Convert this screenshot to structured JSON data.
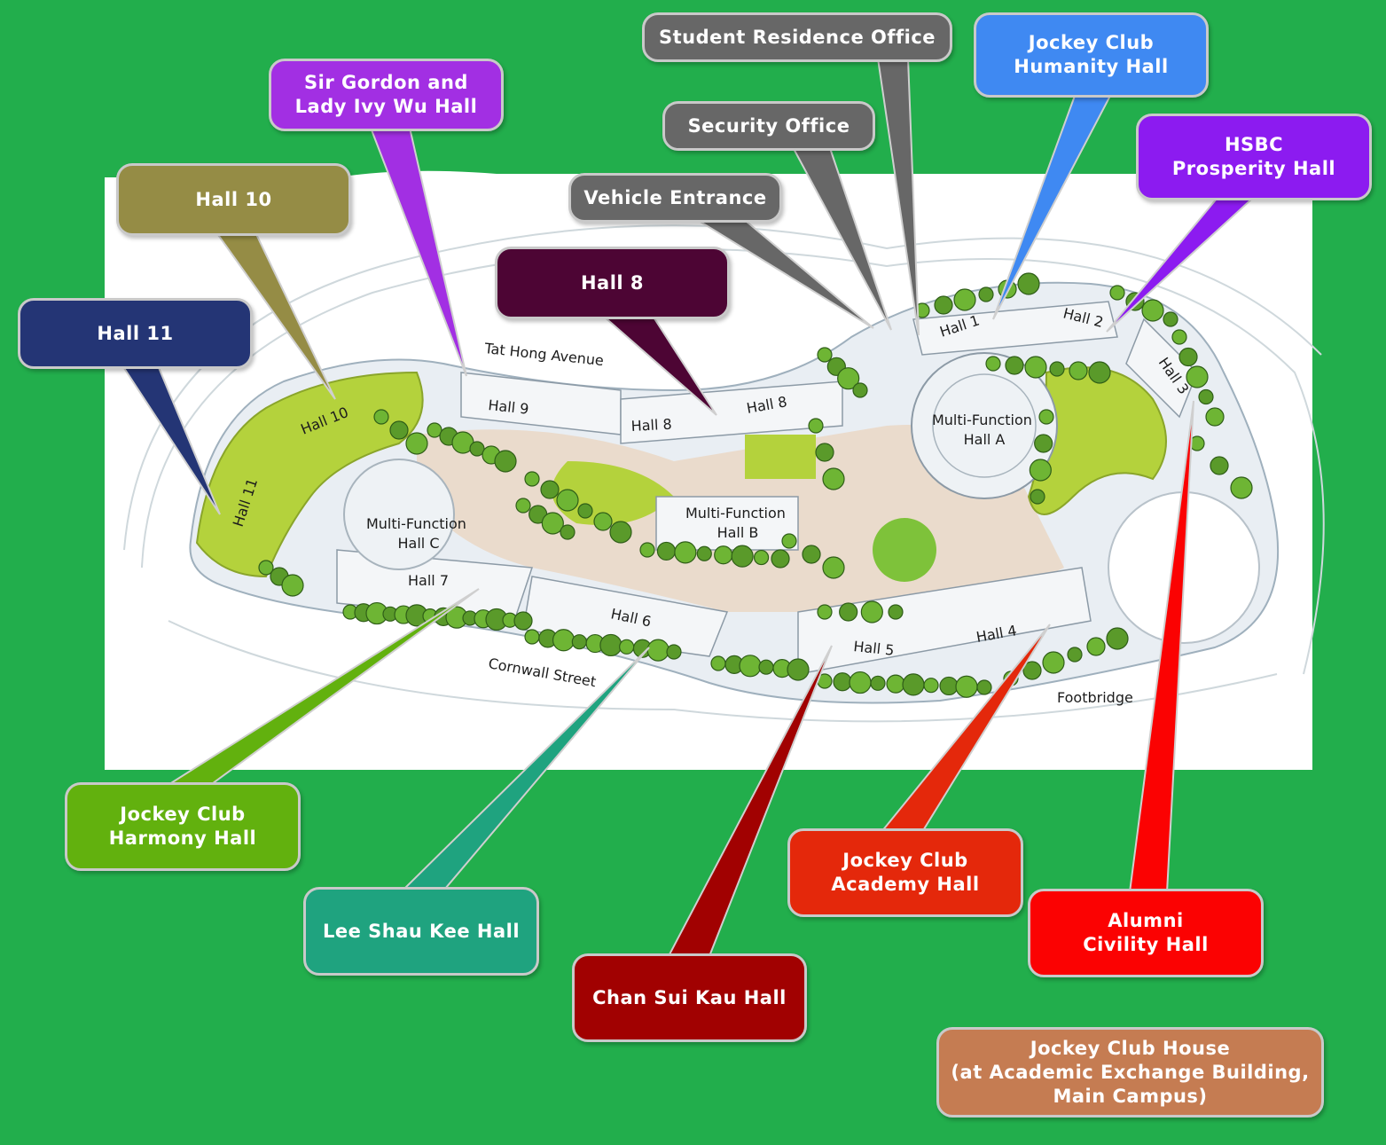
{
  "colors": {
    "background": "#22ae4c",
    "gray": "#676767",
    "olive": "#958c45",
    "navy": "#243575",
    "purple": "#a22fe3",
    "maroon": "#4d0534",
    "blue": "#3f89f2",
    "violet": "#8c1bf0",
    "lime": "#62b10e",
    "teal": "#1fa37f",
    "darkred": "#a10101",
    "orangered": "#e4280b",
    "red": "#fb0202",
    "tan": "#c57c52"
  },
  "callouts": {
    "student_residence_office": [
      "Student Residence Office"
    ],
    "security_office": [
      "Security Office"
    ],
    "vehicle_entrance": [
      "Vehicle Entrance"
    ],
    "humanity_hall": [
      "Jockey Club",
      "Humanity Hall"
    ],
    "prosperity_hall": [
      "HSBC",
      "Prosperity Hall"
    ],
    "wu_hall": [
      "Sir Gordon and",
      "Lady Ivy Wu Hall"
    ],
    "hall_10": [
      "Hall 10"
    ],
    "hall_11": [
      "Hall 11"
    ],
    "hall_8": [
      "Hall 8"
    ],
    "harmony_hall": [
      "Jockey Club",
      "Harmony Hall"
    ],
    "lee_shau_kee_hall": [
      "Lee Shau Kee Hall"
    ],
    "chan_sui_kau_hall": [
      "Chan Sui Kau Hall"
    ],
    "academy_hall": [
      "Jockey Club",
      "Academy Hall"
    ],
    "civility_hall": [
      "Alumni",
      "Civility Hall"
    ],
    "jockey_club_house": [
      "Jockey Club House",
      "(at Academic Exchange Building,",
      "Main Campus)"
    ]
  },
  "map_labels": {
    "hall_1": "Hall 1",
    "hall_2": "Hall 2",
    "hall_3": "Hall 3",
    "hall_4": "Hall 4",
    "hall_5": "Hall 5",
    "hall_6": "Hall 6",
    "hall_7": "Hall 7",
    "hall_8_a": "Hall 8",
    "hall_8_b": "Hall 8",
    "hall_9": "Hall 9",
    "hall_10": "Hall 10",
    "hall_11": "Hall 11",
    "mf_hall_a": [
      "Multi-Function",
      "Hall A"
    ],
    "mf_hall_b": [
      "Multi-Function",
      "Hall B"
    ],
    "mf_hall_c": [
      "Multi-Function",
      "Hall C"
    ],
    "tat_hong_avenue": "Tat Hong Avenue",
    "cornwall_street": "Cornwall Street",
    "footbridge": "Footbridge"
  }
}
